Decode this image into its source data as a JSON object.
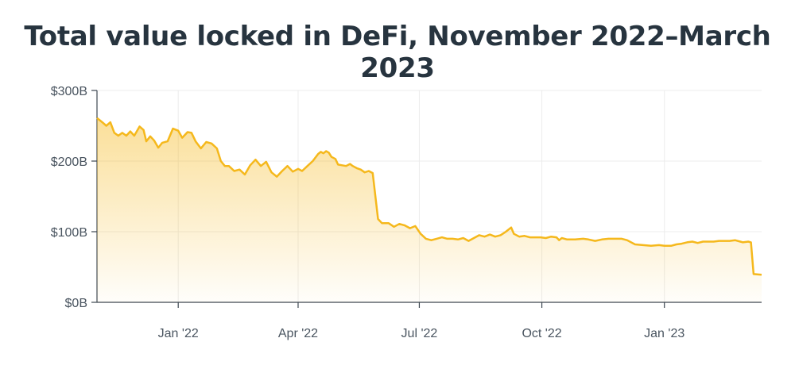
{
  "chart_data": {
    "type": "area",
    "title": "Total value locked in DeFi, November 2022–March 2023",
    "xlabel": "",
    "ylabel": "",
    "ylim": [
      0,
      300
    ],
    "y_unit": "billion USD",
    "y_ticks": [
      {
        "value": 0,
        "label": "$0B"
      },
      {
        "value": 100,
        "label": "$100B"
      },
      {
        "value": 200,
        "label": "$200B"
      },
      {
        "value": 300,
        "label": "$300B"
      }
    ],
    "xlim": [
      "2021-11-01",
      "2023-03-15"
    ],
    "x_ticks": [
      {
        "date": "2022-01-01",
        "label": "Jan '22"
      },
      {
        "date": "2022-04-01",
        "label": "Apr '22"
      },
      {
        "date": "2022-07-01",
        "label": "Jul '22"
      },
      {
        "date": "2022-10-01",
        "label": "Oct '22"
      },
      {
        "date": "2023-01-01",
        "label": "Jan '23"
      }
    ],
    "grid": true,
    "line_color": "#f5b81c",
    "fill_color": "#f5b81c",
    "series": [
      {
        "points": [
          [
            "2021-11-01",
            261
          ],
          [
            "2021-11-05",
            255
          ],
          [
            "2021-11-08",
            250
          ],
          [
            "2021-11-11",
            255
          ],
          [
            "2021-11-14",
            240
          ],
          [
            "2021-11-17",
            236
          ],
          [
            "2021-11-20",
            240
          ],
          [
            "2021-11-23",
            236
          ],
          [
            "2021-11-26",
            242
          ],
          [
            "2021-11-29",
            236
          ],
          [
            "2021-12-03",
            249
          ],
          [
            "2021-12-06",
            244
          ],
          [
            "2021-12-08",
            228
          ],
          [
            "2021-12-11",
            235
          ],
          [
            "2021-12-14",
            229
          ],
          [
            "2021-12-17",
            219
          ],
          [
            "2021-12-20",
            226
          ],
          [
            "2021-12-24",
            228
          ],
          [
            "2021-12-28",
            246
          ],
          [
            "2022-01-01",
            243
          ],
          [
            "2022-01-04",
            233
          ],
          [
            "2022-01-08",
            241
          ],
          [
            "2022-01-11",
            240
          ],
          [
            "2022-01-14",
            228
          ],
          [
            "2022-01-18",
            218
          ],
          [
            "2022-01-22",
            227
          ],
          [
            "2022-01-26",
            225
          ],
          [
            "2022-01-30",
            218
          ],
          [
            "2022-02-02",
            200
          ],
          [
            "2022-02-05",
            193
          ],
          [
            "2022-02-08",
            193
          ],
          [
            "2022-02-12",
            186
          ],
          [
            "2022-02-16",
            188
          ],
          [
            "2022-02-20",
            181
          ],
          [
            "2022-02-24",
            194
          ],
          [
            "2022-02-28",
            202
          ],
          [
            "2022-03-04",
            193
          ],
          [
            "2022-03-08",
            199
          ],
          [
            "2022-03-12",
            184
          ],
          [
            "2022-03-16",
            178
          ],
          [
            "2022-03-20",
            186
          ],
          [
            "2022-03-24",
            193
          ],
          [
            "2022-03-28",
            185
          ],
          [
            "2022-04-01",
            189
          ],
          [
            "2022-04-04",
            186
          ],
          [
            "2022-04-08",
            193
          ],
          [
            "2022-04-12",
            200
          ],
          [
            "2022-04-16",
            210
          ],
          [
            "2022-04-18",
            213
          ],
          [
            "2022-04-20",
            211
          ],
          [
            "2022-04-22",
            214
          ],
          [
            "2022-04-24",
            212
          ],
          [
            "2022-04-26",
            206
          ],
          [
            "2022-04-29",
            203
          ],
          [
            "2022-05-01",
            195
          ],
          [
            "2022-05-04",
            194
          ],
          [
            "2022-05-07",
            193
          ],
          [
            "2022-05-10",
            196
          ],
          [
            "2022-05-12",
            193
          ],
          [
            "2022-05-15",
            190
          ],
          [
            "2022-05-18",
            188
          ],
          [
            "2022-05-21",
            184
          ],
          [
            "2022-05-24",
            186
          ],
          [
            "2022-05-27",
            183
          ],
          [
            "2022-05-31",
            118
          ],
          [
            "2022-06-03",
            112
          ],
          [
            "2022-06-08",
            112
          ],
          [
            "2022-06-12",
            107
          ],
          [
            "2022-06-16",
            111
          ],
          [
            "2022-06-20",
            109
          ],
          [
            "2022-06-24",
            105
          ],
          [
            "2022-06-28",
            108
          ],
          [
            "2022-07-02",
            97
          ],
          [
            "2022-07-06",
            90
          ],
          [
            "2022-07-10",
            88
          ],
          [
            "2022-07-14",
            90
          ],
          [
            "2022-07-18",
            92
          ],
          [
            "2022-07-22",
            90
          ],
          [
            "2022-07-26",
            90
          ],
          [
            "2022-07-30",
            89
          ],
          [
            "2022-08-03",
            91
          ],
          [
            "2022-08-07",
            87
          ],
          [
            "2022-08-11",
            91
          ],
          [
            "2022-08-15",
            95
          ],
          [
            "2022-08-19",
            93
          ],
          [
            "2022-08-23",
            96
          ],
          [
            "2022-08-27",
            93
          ],
          [
            "2022-08-31",
            95
          ],
          [
            "2022-09-04",
            100
          ],
          [
            "2022-09-08",
            106
          ],
          [
            "2022-09-10",
            97
          ],
          [
            "2022-09-14",
            93
          ],
          [
            "2022-09-18",
            94
          ],
          [
            "2022-09-22",
            92
          ],
          [
            "2022-09-26",
            92
          ],
          [
            "2022-09-30",
            92
          ],
          [
            "2022-10-04",
            91
          ],
          [
            "2022-10-08",
            93
          ],
          [
            "2022-10-12",
            92
          ],
          [
            "2022-10-14",
            88
          ],
          [
            "2022-10-16",
            91
          ],
          [
            "2022-10-20",
            89
          ],
          [
            "2022-10-26",
            89
          ],
          [
            "2022-11-01",
            90
          ],
          [
            "2022-11-05",
            89
          ],
          [
            "2022-11-10",
            87
          ],
          [
            "2022-11-15",
            89
          ],
          [
            "2022-11-20",
            90
          ],
          [
            "2022-11-25",
            90
          ],
          [
            "2022-11-30",
            90
          ],
          [
            "2022-12-04",
            88
          ],
          [
            "2022-12-10",
            82
          ],
          [
            "2022-12-16",
            81
          ],
          [
            "2022-12-22",
            80
          ],
          [
            "2022-12-28",
            81
          ],
          [
            "2023-01-01",
            80
          ],
          [
            "2023-01-06",
            80
          ],
          [
            "2023-01-10",
            82
          ],
          [
            "2023-01-14",
            83
          ],
          [
            "2023-01-18",
            85
          ],
          [
            "2023-01-22",
            86
          ],
          [
            "2023-01-26",
            84
          ],
          [
            "2023-01-30",
            86
          ],
          [
            "2023-02-03",
            86
          ],
          [
            "2023-02-07",
            86
          ],
          [
            "2023-02-11",
            87
          ],
          [
            "2023-02-15",
            87
          ],
          [
            "2023-02-19",
            87
          ],
          [
            "2023-02-23",
            88
          ],
          [
            "2023-02-27",
            86
          ],
          [
            "2023-03-01",
            85
          ],
          [
            "2023-03-05",
            86
          ],
          [
            "2023-03-07",
            85
          ],
          [
            "2023-03-09",
            40
          ],
          [
            "2023-03-15",
            39
          ]
        ]
      }
    ]
  }
}
